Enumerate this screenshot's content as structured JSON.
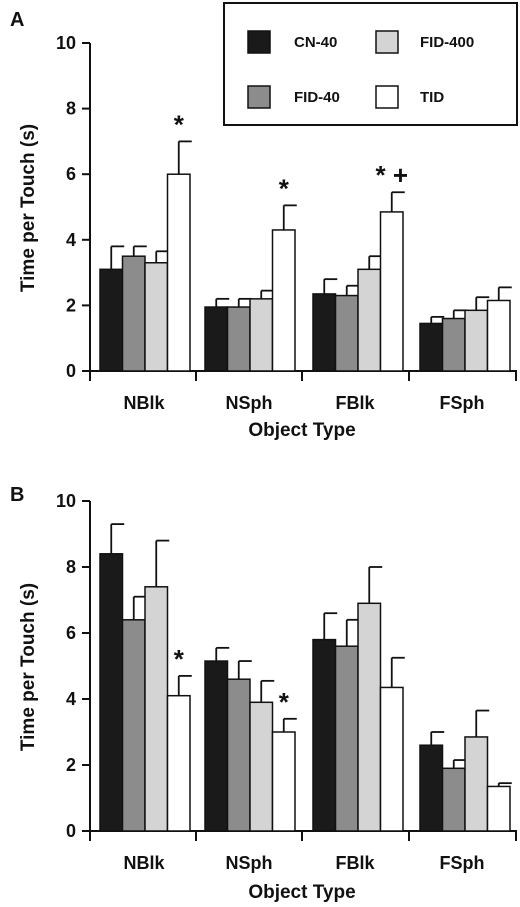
{
  "colors": {
    "CN-40": "#1a1a1a",
    "FID-40": "#8c8c8c",
    "FID-400": "#d4d4d4",
    "TID": "#ffffff",
    "axis": "#111111"
  },
  "chart_data": [
    {
      "panel_label": "A",
      "type": "bar",
      "categories": [
        "NBlk",
        "NSph",
        "FBlk",
        "FSph"
      ],
      "xlabel": "Object Type",
      "ylabel": "Time per Touch (s)",
      "ylim": [
        0,
        10
      ],
      "yticks": [
        "0",
        "2",
        "4",
        "6",
        "8",
        "10"
      ],
      "legend": {
        "placement": "top-right",
        "entries": [
          "CN-40",
          "FID-400",
          "FID-40",
          "TID"
        ]
      },
      "series": [
        {
          "name": "CN-40",
          "values": [
            3.1,
            1.95,
            2.35,
            1.45
          ],
          "errors": [
            0.7,
            0.25,
            0.45,
            0.2
          ]
        },
        {
          "name": "FID-40",
          "values": [
            3.5,
            1.95,
            2.3,
            1.6
          ],
          "errors": [
            0.3,
            0.25,
            0.3,
            0.25
          ]
        },
        {
          "name": "FID-400",
          "values": [
            3.3,
            2.2,
            3.1,
            1.85
          ],
          "errors": [
            0.35,
            0.25,
            0.4,
            0.4
          ]
        },
        {
          "name": "TID",
          "values": [
            6.0,
            4.3,
            4.85,
            2.15
          ],
          "errors": [
            1.0,
            0.75,
            0.6,
            0.4
          ]
        }
      ],
      "annotations": [
        {
          "text": "*",
          "category": "NBlk",
          "series": "TID"
        },
        {
          "text": "*",
          "category": "NSph",
          "series": "TID"
        },
        {
          "text": "* +",
          "category": "FBlk",
          "series": "TID"
        }
      ]
    },
    {
      "panel_label": "B",
      "type": "bar",
      "categories": [
        "NBlk",
        "NSph",
        "FBlk",
        "FSph"
      ],
      "xlabel": "Object Type",
      "ylabel": "Time per Touch (s)",
      "ylim": [
        0,
        10
      ],
      "yticks": [
        "0",
        "2",
        "4",
        "6",
        "8",
        "10"
      ],
      "series": [
        {
          "name": "CN-40",
          "values": [
            8.4,
            5.15,
            5.8,
            2.6
          ],
          "errors": [
            0.9,
            0.4,
            0.8,
            0.4
          ]
        },
        {
          "name": "FID-40",
          "values": [
            6.4,
            4.6,
            5.6,
            1.9
          ],
          "errors": [
            0.7,
            0.55,
            0.8,
            0.25
          ]
        },
        {
          "name": "FID-400",
          "values": [
            7.4,
            3.9,
            6.9,
            2.85
          ],
          "errors": [
            1.4,
            0.65,
            1.1,
            0.8
          ]
        },
        {
          "name": "TID",
          "values": [
            4.1,
            3.0,
            4.35,
            1.35
          ],
          "errors": [
            0.6,
            0.4,
            0.9,
            0.1
          ]
        }
      ],
      "annotations": [
        {
          "text": "*",
          "category": "NBlk",
          "series": "TID"
        },
        {
          "text": "*",
          "category": "NSph",
          "series": "TID"
        }
      ]
    }
  ]
}
